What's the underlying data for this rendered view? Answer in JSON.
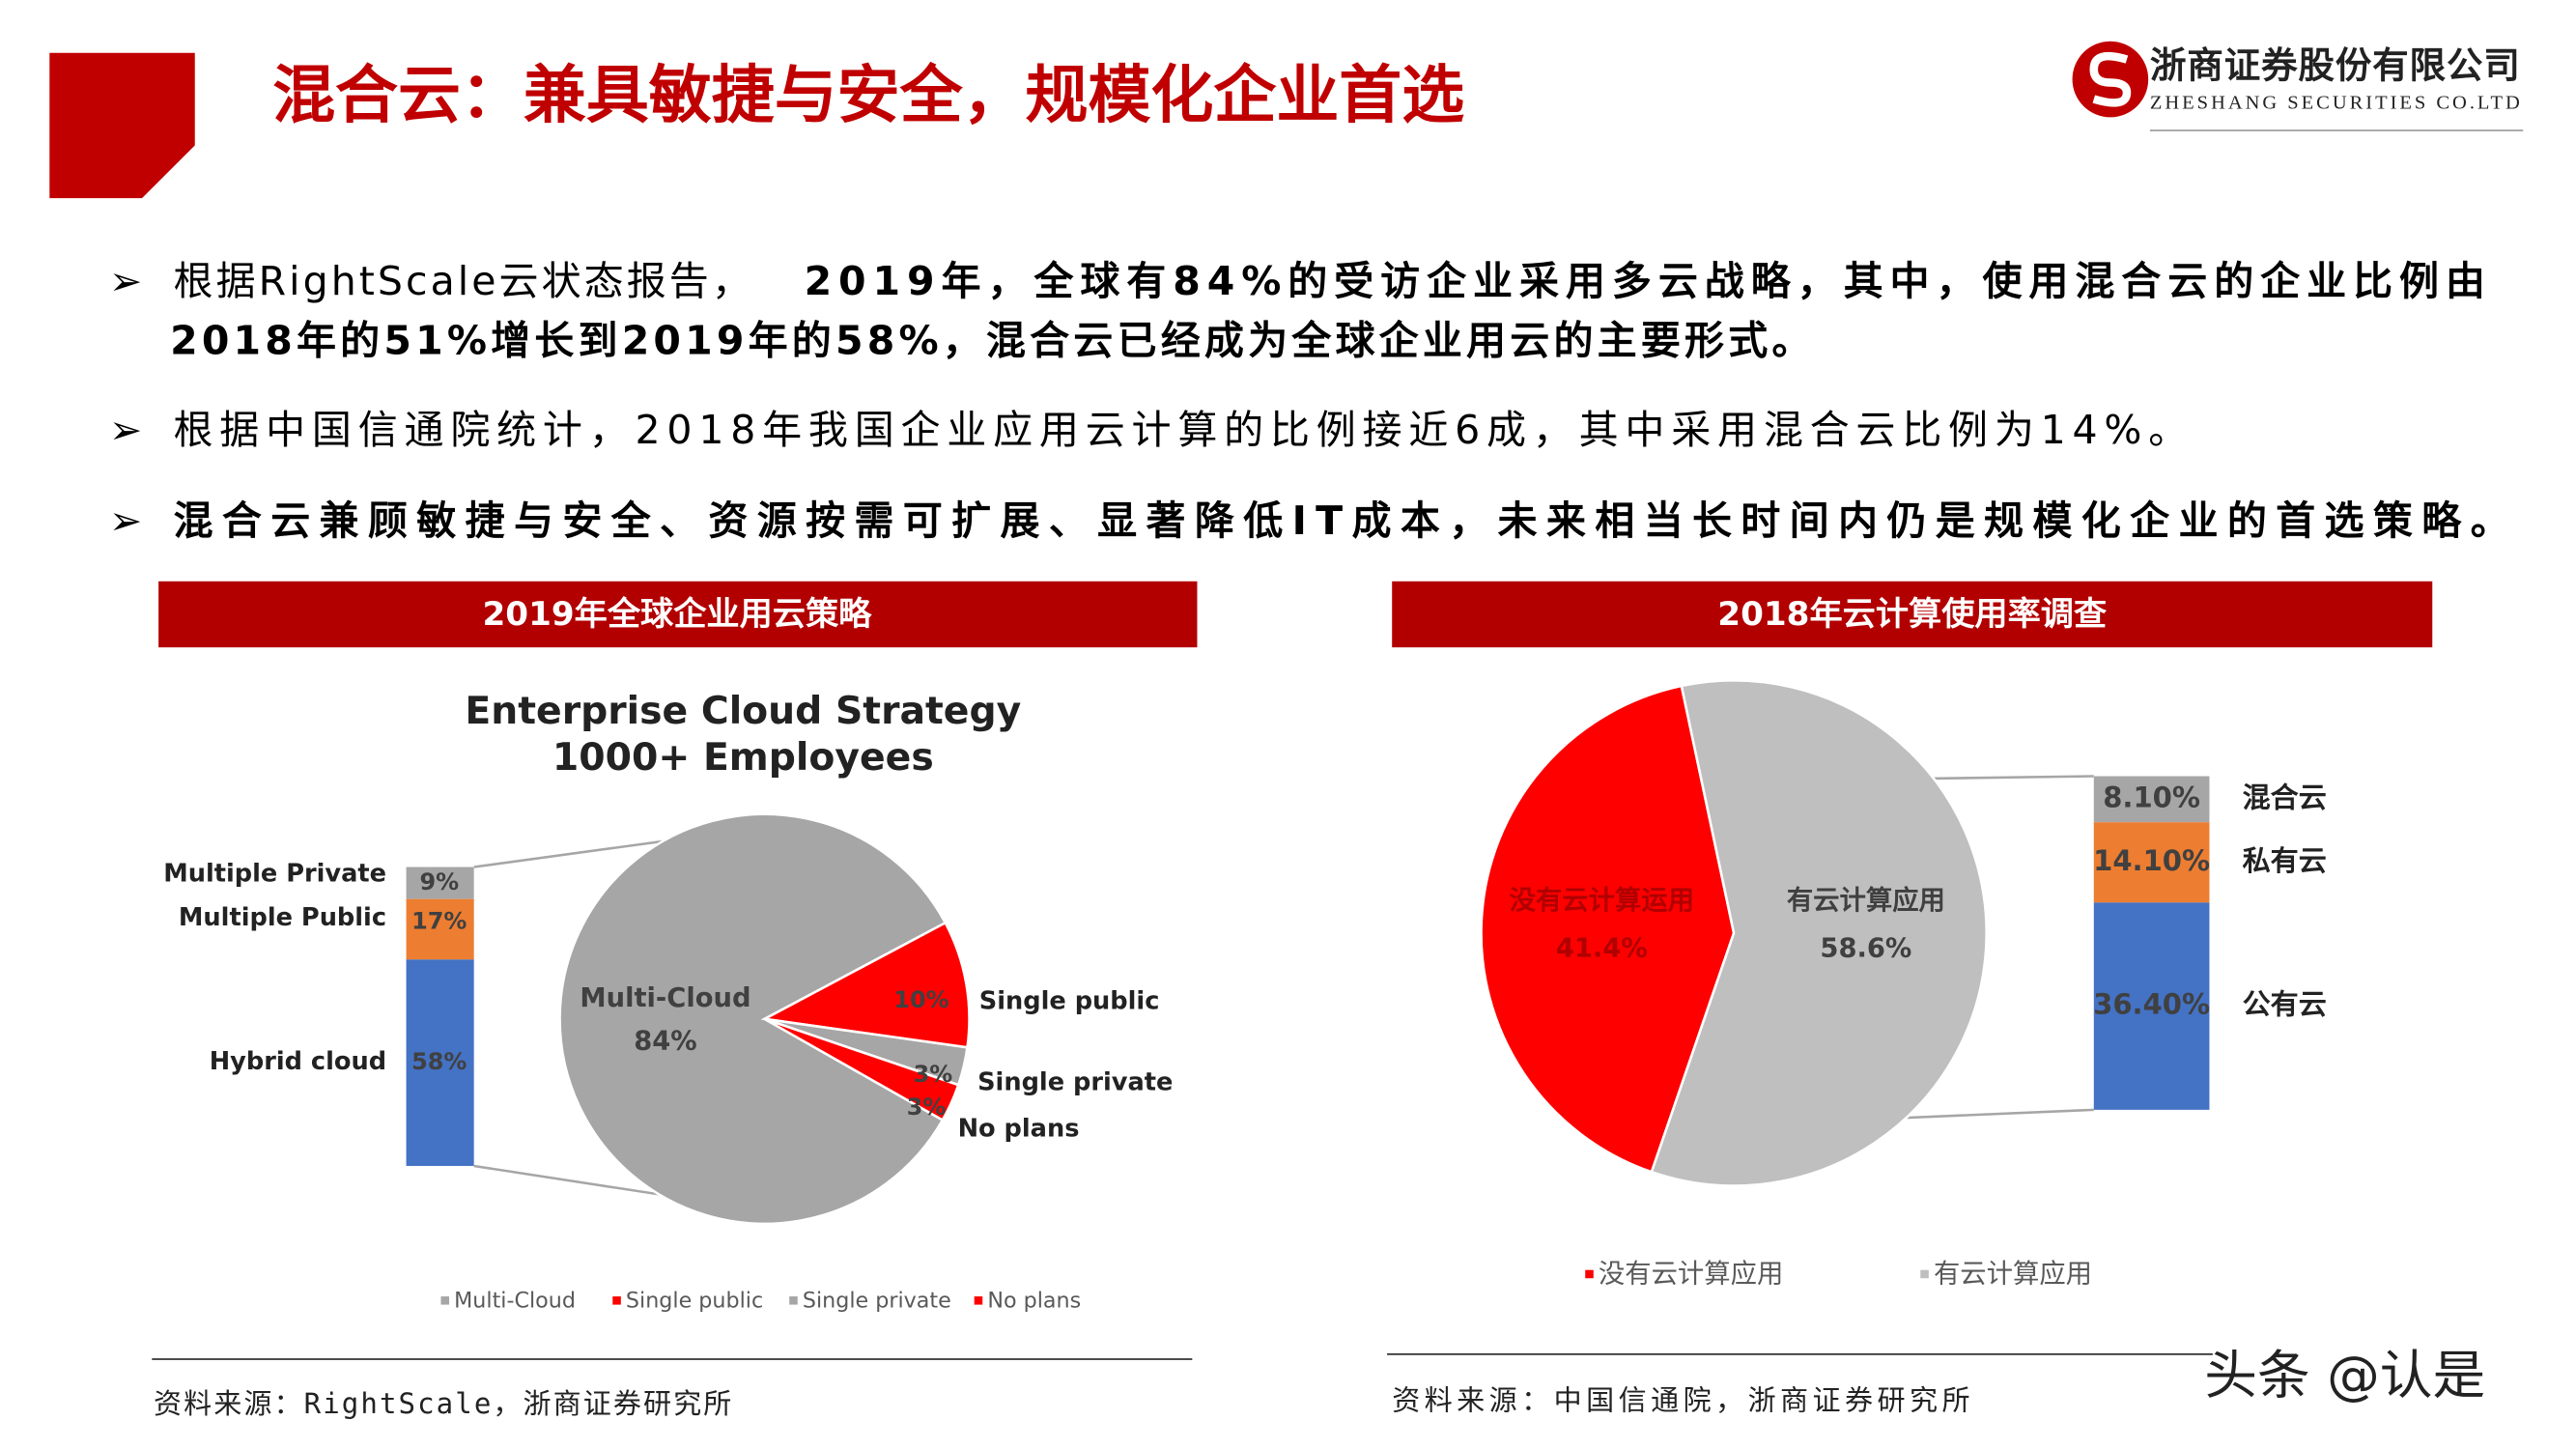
{
  "header": {
    "title": "混合云：兼具敏捷与安全，规模化企业首选",
    "company": "浙商证券股份有限公司",
    "company_en": "ZHESHANG SECURITIES CO.LTD"
  },
  "bullets": [
    {
      "runs": [
        "根据RightScale云状态报告，",
        "2019年，全球有84%的受访企业采用多云战略，其中，使用混合云的企业比例由",
        "2018年的51%增长到2019年的58%，混合云已经成为全球企业用云的主要形式。"
      ]
    },
    {
      "runs": [
        "根据中国信通院统计，2018年我国企业应用云计算的比例接近6成，其中采用混合云比例为14%。"
      ]
    },
    {
      "runs": [
        "混合云兼顾敏捷与安全、资源按需可扩展、显著降低IT成本，未来相当长时间内仍是规模化企业的首选策略。"
      ]
    }
  ],
  "panels": [
    "2019年全球企业用云策略",
    "2018年云计算使用率调查"
  ],
  "sources": [
    "资料来源：RightScale，浙商证券研究所",
    "资料来源：中国信通院，浙商证券研究所"
  ],
  "watermark": "头条 @认是",
  "chart_data": [
    {
      "type": "pie",
      "title": "Enterprise Cloud Strategy",
      "subtitle": "1000+ Employees",
      "categories": [
        "Multi-Cloud",
        "Single public",
        "Single private",
        "No plans"
      ],
      "values": [
        84,
        10,
        3,
        3
      ],
      "value_labels": [
        "84%",
        "10%",
        "3%",
        "3%"
      ],
      "colors": [
        "#a6a6a6",
        "#ff0000",
        "#a6a6a6",
        "#ff0000"
      ],
      "breakdown": {
        "categories": [
          "Multiple Private",
          "Multiple Public",
          "Hybrid cloud"
        ],
        "values": [
          9,
          17,
          58
        ],
        "value_labels": [
          "9%",
          "17%",
          "58%"
        ],
        "colors": [
          "#a6a6a6",
          "#ed7d31",
          "#4472c4"
        ]
      }
    },
    {
      "type": "pie",
      "categories": [
        "没有云计算应用",
        "有云计算应用"
      ],
      "slice_labels": [
        "没有云计算运用",
        "有云计算应用"
      ],
      "values": [
        41.4,
        58.6
      ],
      "value_labels": [
        "41.4%",
        "58.6%"
      ],
      "colors": [
        "#ff0000",
        "#bfbfbf"
      ],
      "breakdown": {
        "categories": [
          "混合云",
          "私有云",
          "公有云"
        ],
        "values": [
          8.1,
          14.1,
          36.4
        ],
        "value_labels": [
          "8.10%",
          "14.10%",
          "36.40%"
        ],
        "colors": [
          "#a6a6a6",
          "#ed7d31",
          "#4472c4"
        ]
      }
    }
  ]
}
